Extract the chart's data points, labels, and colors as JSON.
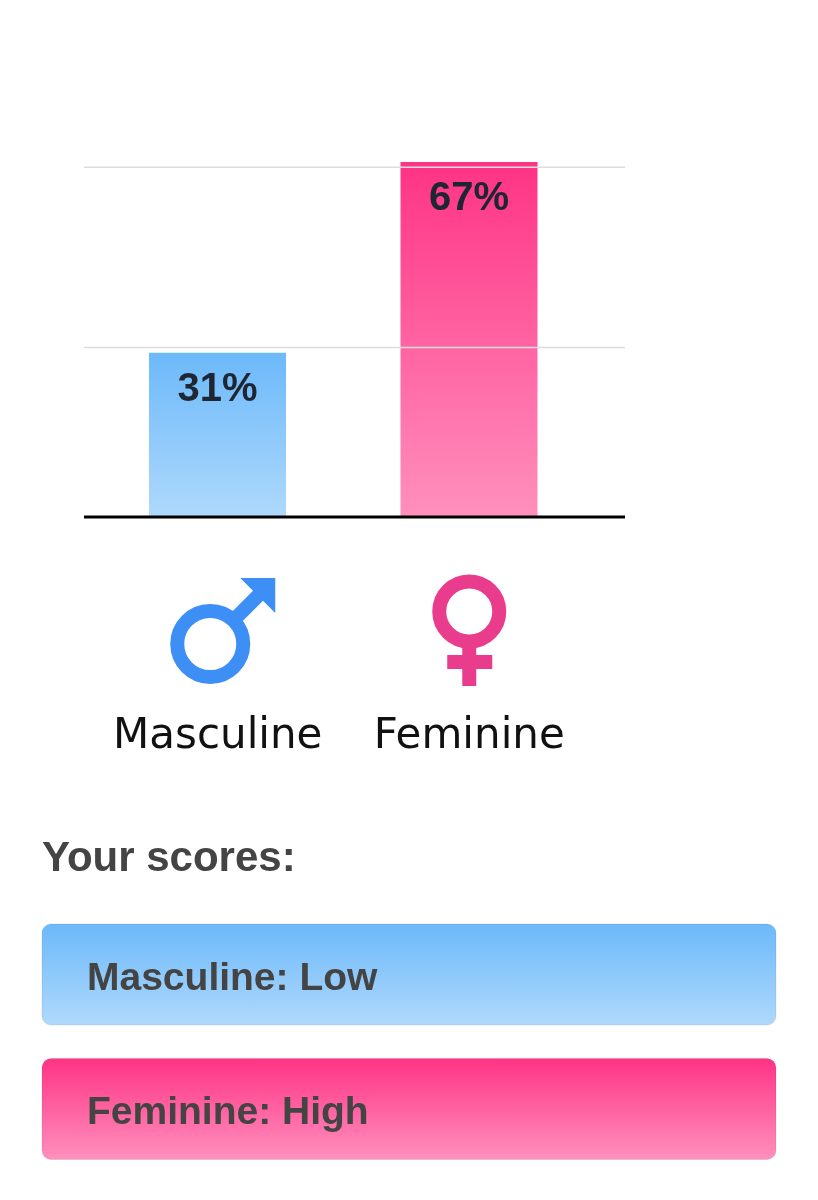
{
  "chart_data": {
    "type": "bar",
    "categories": [
      "Masculine",
      "Feminine"
    ],
    "values": [
      31,
      67
    ],
    "colors": [
      "#8cc8fb",
      "#ff60a0"
    ],
    "value_labels": [
      "31%",
      "67%"
    ],
    "tick_labels": "x",
    "ref_lines": [
      {
        "axis": "y",
        "value": 32,
        "color": "#dddddd"
      },
      {
        "axis": "y",
        "value": 66,
        "color": "#dddddd"
      }
    ],
    "annotations": [
      "Your scores:",
      "Masculine: Low",
      "Feminine: High"
    ]
  }
}
